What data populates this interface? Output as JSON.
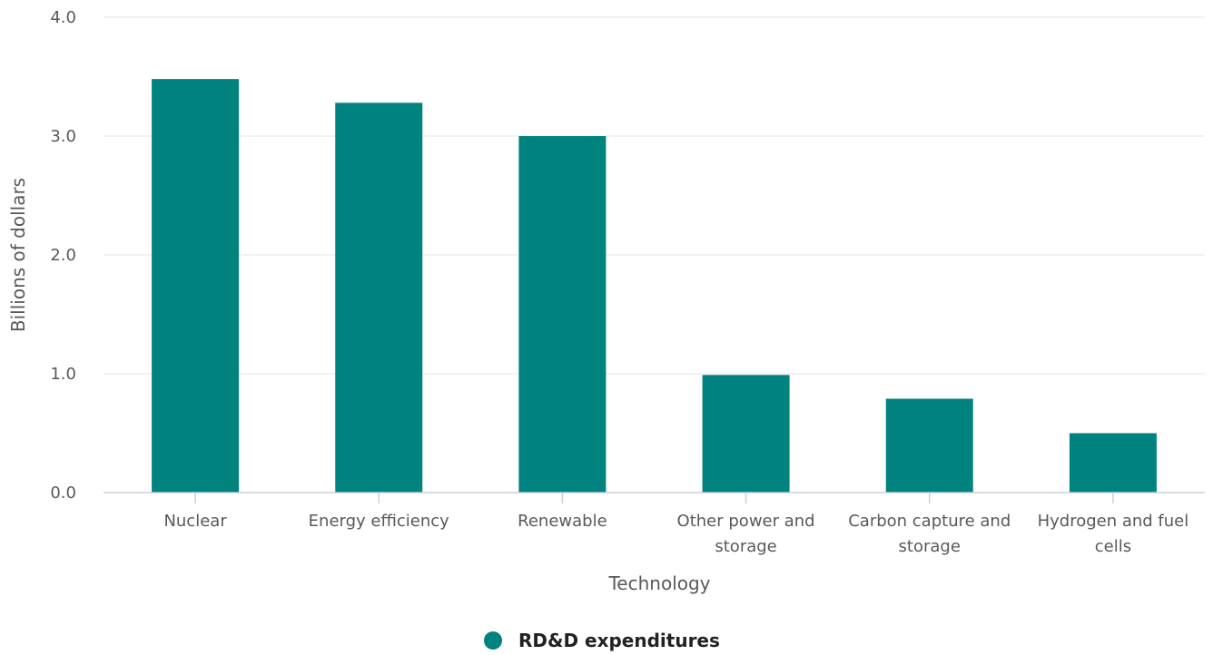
{
  "chart_data": {
    "type": "bar",
    "xlabel": "Technology",
    "ylabel": "Billions of dollars",
    "ylim": [
      0,
      4
    ],
    "yticks": [
      "0.0",
      "1.0",
      "2.0",
      "3.0",
      "4.0"
    ],
    "categories": [
      [
        "Nuclear"
      ],
      [
        "Energy efficiency"
      ],
      [
        "Renewable"
      ],
      [
        "Other power and",
        "storage"
      ],
      [
        "Carbon capture and",
        "storage"
      ],
      [
        "Hydrogen and fuel",
        "cells"
      ]
    ],
    "series": [
      {
        "name": "RD&D expenditures",
        "color": "#00837e",
        "values": [
          3.48,
          3.28,
          3.0,
          0.99,
          0.79,
          0.5
        ]
      }
    ],
    "grid": true,
    "legend_position": "bottom-center"
  }
}
